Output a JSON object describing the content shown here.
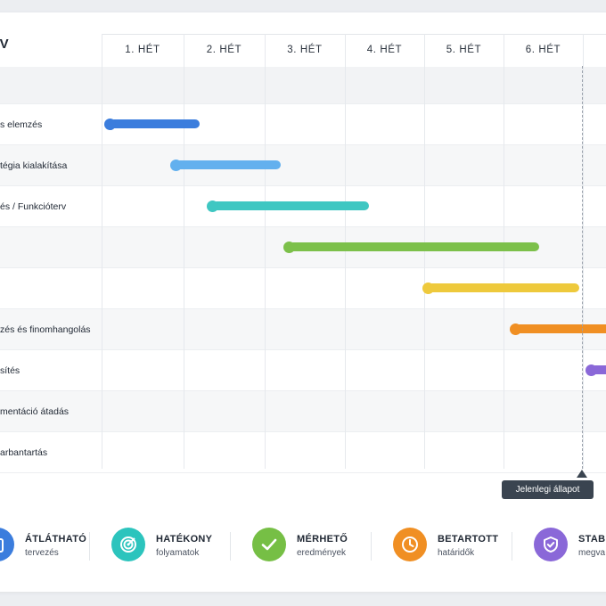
{
  "title": "ERV",
  "weeks": [
    "1. HÉT",
    "2. HÉT",
    "3. HÉT",
    "4. HÉT",
    "5. HÉT",
    "6. HÉT"
  ],
  "tasks": [
    {
      "label": "s elemzés",
      "color": "#3b7ddd",
      "start_week": 1.1,
      "end_week": 2.2
    },
    {
      "label": "tégia kialakítása",
      "color": "#63b0ee",
      "start_week": 1.9,
      "end_week": 3.2
    },
    {
      "label": "és / Funkcióterv",
      "color": "#3fc7c2",
      "start_week": 2.35,
      "end_week": 4.3
    },
    {
      "label": "",
      "color": "#7cc04a",
      "start_week": 3.3,
      "end_week": 6.45
    },
    {
      "label": "",
      "color": "#eec93c",
      "start_week": 5.05,
      "end_week": 6.95
    },
    {
      "label": "zés és finomhangolás",
      "color": "#f08f23",
      "start_week": 6.15,
      "end_week": 7.6
    },
    {
      "label": "sítés",
      "color": "#8a68d8",
      "start_week": 7.1,
      "end_week": 7.6
    },
    {
      "label": "mentáció átadás",
      "color": "",
      "start_week": null,
      "end_week": null
    },
    {
      "label": "arbantartás",
      "color": "",
      "start_week": null,
      "end_week": null
    }
  ],
  "today": {
    "label": "Jelenlegi állapot",
    "week": 6.97
  },
  "features": [
    {
      "title": "ÁTLÁTHATÓ",
      "subtitle": "tervezés",
      "icon": "clipboard-icon",
      "color": "#3b7ddd"
    },
    {
      "title": "HATÉKONY",
      "subtitle": "folyamatok",
      "icon": "target-icon",
      "color": "#2cc4bd"
    },
    {
      "title": "MÉRHETŐ",
      "subtitle": "eredmények",
      "icon": "check-icon",
      "color": "#76bf45"
    },
    {
      "title": "BETARTOTT",
      "subtitle": "határidők",
      "icon": "clock-icon",
      "color": "#f08f23"
    },
    {
      "title": "STABIL",
      "subtitle": "megva",
      "icon": "shield-check-icon",
      "color": "#8a68d8"
    }
  ]
}
